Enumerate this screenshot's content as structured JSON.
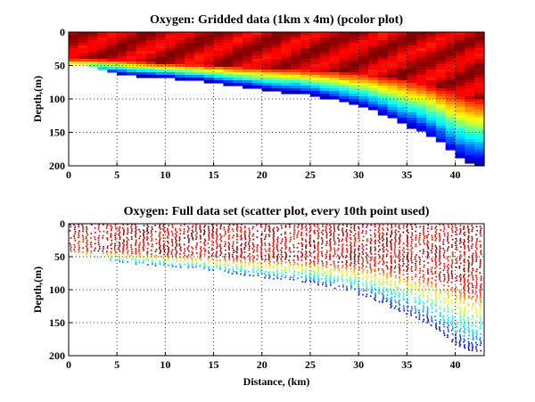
{
  "chart_data": [
    {
      "type": "heatmap",
      "title": "Oxygen: Gridded data (1km x 4m) (pcolor plot)",
      "xlabel": "",
      "ylabel": "Depth,(m)",
      "xlim": [
        0,
        43
      ],
      "ylim": [
        200,
        0
      ],
      "y_reversed": true,
      "xticks": [
        0,
        5,
        10,
        15,
        20,
        25,
        30,
        35,
        40
      ],
      "yticks": [
        0,
        50,
        100,
        150,
        200
      ],
      "grid": true,
      "colormap": "jet",
      "cell_size": {
        "dx_km": 1,
        "dz_m": 4
      },
      "bottom_depth_by_km": {
        "x": [
          0,
          1,
          2,
          3,
          4,
          5,
          6,
          7,
          8,
          9,
          10,
          11,
          12,
          13,
          14,
          15,
          16,
          17,
          18,
          19,
          20,
          21,
          22,
          23,
          24,
          25,
          26,
          27,
          28,
          29,
          30,
          31,
          32,
          33,
          34,
          35,
          36,
          37,
          38,
          39,
          40,
          41,
          42
        ],
        "max_depth_m": [
          48,
          48,
          52,
          56,
          60,
          62,
          64,
          66,
          66,
          68,
          68,
          70,
          72,
          72,
          74,
          76,
          78,
          80,
          82,
          84,
          86,
          88,
          90,
          90,
          92,
          94,
          98,
          100,
          104,
          108,
          112,
          116,
          122,
          128,
          136,
          142,
          148,
          154,
          164,
          176,
          186,
          196,
          198
        ]
      },
      "thermocline_depth_by_km": {
        "x": [
          0,
          5,
          10,
          15,
          20,
          25,
          30,
          35,
          38,
          40,
          42
        ],
        "depth_m": [
          48,
          50,
          55,
          58,
          62,
          65,
          70,
          80,
          90,
          100,
          110
        ]
      }
    },
    {
      "type": "scatter",
      "title": "Oxygen: Full data set (scatter plot, every 10th point used)",
      "xlabel": "Distance, (km)",
      "ylabel": "Depth,(m)",
      "xlim": [
        0,
        43
      ],
      "ylim": [
        200,
        0
      ],
      "y_reversed": true,
      "xticks": [
        0,
        5,
        10,
        15,
        20,
        25,
        30,
        35,
        40
      ],
      "yticks": [
        0,
        50,
        100,
        150,
        200
      ],
      "grid": true,
      "colormap": "jet",
      "sampling": "every 10th point"
    }
  ]
}
